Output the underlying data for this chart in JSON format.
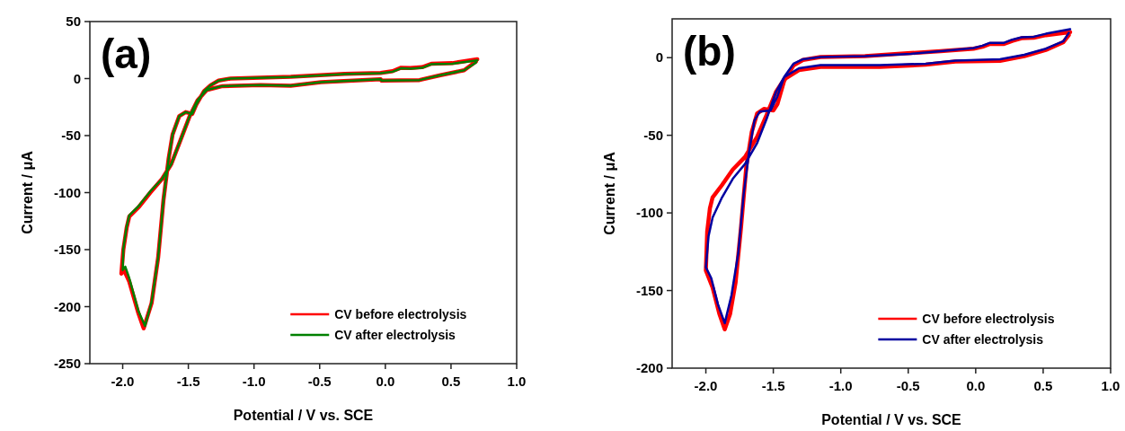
{
  "chart_data": [
    {
      "type": "line",
      "title": "(a)",
      "xlabel": "Potential / V vs. SCE",
      "ylabel": "Current / μA",
      "xlim": [
        -2.25,
        1.0
      ],
      "ylim": [
        -250,
        50
      ],
      "xticks": [
        {
          "value": -2,
          "label": "-2.0"
        },
        {
          "value": -1.5,
          "label": "-1.5"
        },
        {
          "value": -1,
          "label": "-1.0"
        },
        {
          "value": -0.5,
          "label": "-0.5"
        },
        {
          "value": 0,
          "label": "0.0"
        },
        {
          "value": 0.5,
          "label": "0.5"
        },
        {
          "value": 1,
          "label": "1.0"
        }
      ],
      "yticks": [
        -250,
        -200,
        -150,
        -100,
        -50,
        0,
        50
      ],
      "grid": false,
      "legend": "bottom right",
      "marker": "none",
      "line_style": "solid",
      "series": [
        {
          "name": "CV before electrolysis",
          "color": "#ff0000",
          "x": [
            0.7,
            0.51,
            0.35,
            0.28,
            0.19,
            0.12,
            0.055,
            -0.036,
            -0.31,
            -0.72,
            -1.18,
            -1.27,
            -1.33,
            -1.38,
            -1.44,
            -1.47,
            -1.52,
            -1.57,
            -1.62,
            -1.65,
            -1.69,
            -1.73,
            -1.78,
            -1.84,
            -1.88,
            -1.95,
            -1.99,
            -2.01,
            -1.995,
            -1.97,
            -1.95,
            -1.88,
            -1.79,
            -1.7,
            -1.63,
            -1.56,
            -1.49,
            -1.43,
            -1.36,
            -1.24,
            -0.95,
            -0.72,
            -0.49,
            -0.036,
            -0.03,
            0.26,
            0.42,
            0.6,
            0.69
          ],
          "values": [
            17,
            13.5,
            13,
            10,
            9.2,
            9.5,
            6.5,
            5,
            4.2,
            1.5,
            0,
            -1.8,
            -5.8,
            -11,
            -23,
            -31,
            -29.4,
            -33,
            -49,
            -70,
            -107,
            -157,
            -197,
            -219,
            -206,
            -178,
            -168,
            -171,
            -150,
            -131,
            -121,
            -113,
            -100,
            -88,
            -75,
            -54,
            -33,
            -19,
            -10,
            -6.6,
            -5.8,
            -6.3,
            -3.1,
            -0.5,
            -1.8,
            -1.3,
            2.9,
            7.3,
            15
          ]
        },
        {
          "name": "CV after electrolysis",
          "color": "#008000",
          "x": [
            0.7,
            0.51,
            0.35,
            0.28,
            0.19,
            0.12,
            0.055,
            -0.036,
            -0.31,
            -0.72,
            -1.18,
            -1.27,
            -1.33,
            -1.38,
            -1.44,
            -1.47,
            -1.52,
            -1.57,
            -1.62,
            -1.65,
            -1.69,
            -1.73,
            -1.78,
            -1.83,
            -1.88,
            -1.95,
            -1.98,
            -2.0,
            -1.995,
            -1.97,
            -1.95,
            -1.88,
            -1.79,
            -1.7,
            -1.63,
            -1.56,
            -1.49,
            -1.43,
            -1.36,
            -1.24,
            -0.95,
            -0.72,
            -0.49,
            -0.036,
            -0.03,
            0.26,
            0.42,
            0.6,
            0.69
          ],
          "values": [
            16,
            13,
            12.6,
            9.4,
            8.7,
            9,
            6,
            4.7,
            3.9,
            1.3,
            0,
            -1.8,
            -5.8,
            -11,
            -23,
            -31,
            -29.4,
            -33,
            -49,
            -70,
            -107,
            -157,
            -196,
            -217,
            -204,
            -175,
            -165,
            -168,
            -149,
            -130,
            -120,
            -112,
            -99,
            -88,
            -75,
            -54,
            -33,
            -19,
            -10,
            -6.6,
            -5.8,
            -6.3,
            -3.1,
            -0.5,
            -1.8,
            -1.3,
            2.9,
            7.3,
            14
          ]
        }
      ]
    },
    {
      "type": "line",
      "title": "(b)",
      "xlabel": "Potential / V vs. SCE",
      "ylabel": "Current / μA",
      "xlim": [
        -2.25,
        1.0
      ],
      "ylim": [
        -200,
        25
      ],
      "xticks": [
        {
          "value": -2,
          "label": "-2.0"
        },
        {
          "value": -1.5,
          "label": "-1.5"
        },
        {
          "value": -1,
          "label": "-1.0"
        },
        {
          "value": -0.5,
          "label": "-0.5"
        },
        {
          "value": 0,
          "label": "0.0"
        },
        {
          "value": 0.5,
          "label": "0.5"
        },
        {
          "value": 1,
          "label": "1.0"
        }
      ],
      "yticks": [
        -200,
        -150,
        -100,
        -50,
        0
      ],
      "grid": false,
      "legend": "bottom right",
      "marker": "none",
      "line_style": "solid",
      "series": [
        {
          "name": "CV before electrolysis",
          "color": "#ff0000",
          "x": [
            0.7,
            0.52,
            0.43,
            0.34,
            0.27,
            0.21,
            0.106,
            0.05,
            -0.016,
            -0.26,
            -0.48,
            -0.82,
            -1.15,
            -1.28,
            -1.35,
            -1.42,
            -1.47,
            -1.5,
            -1.57,
            -1.62,
            -1.66,
            -1.7,
            -1.74,
            -1.78,
            -1.82,
            -1.86,
            -1.9,
            -1.95,
            -2.0,
            -1.99,
            -1.97,
            -1.95,
            -1.88,
            -1.8,
            -1.71,
            -1.62,
            -1.55,
            -1.48,
            -1.42,
            -1.31,
            -1.15,
            -0.71,
            -0.37,
            -0.15,
            0.18,
            0.36,
            0.52,
            0.65,
            0.69
          ],
          "values": [
            16.5,
            14.5,
            12.8,
            12.5,
            10.8,
            8.8,
            8.8,
            7,
            5.8,
            4.2,
            3,
            1,
            0.4,
            -1.5,
            -5,
            -15,
            -30,
            -34,
            -33,
            -36,
            -48,
            -70,
            -110,
            -145,
            -165,
            -175,
            -165,
            -148,
            -137,
            -112,
            -97,
            -90,
            -82,
            -72,
            -64,
            -51,
            -37,
            -22,
            -14,
            -8,
            -6,
            -6,
            -4.5,
            -2.5,
            -2,
            1,
            5,
            10,
            14.5
          ]
        },
        {
          "name": "CV after electrolysis",
          "color": "#0000a0",
          "x": [
            0.7,
            0.52,
            0.43,
            0.34,
            0.27,
            0.21,
            0.106,
            0.05,
            -0.016,
            -0.26,
            -0.48,
            -0.82,
            -1.15,
            -1.28,
            -1.35,
            -1.42,
            -1.47,
            -1.52,
            -1.6,
            -1.64,
            -1.68,
            -1.72,
            -1.76,
            -1.81,
            -1.86,
            -1.91,
            -1.96,
            -2.0,
            -1.98,
            -1.95,
            -1.88,
            -1.8,
            -1.71,
            -1.62,
            -1.55,
            -1.48,
            -1.42,
            -1.31,
            -1.15,
            -0.71,
            -0.37,
            -0.15,
            0.18,
            0.36,
            0.52,
            0.65,
            0.69
          ],
          "values": [
            18.3,
            15.4,
            13.5,
            13.1,
            11.6,
            9.6,
            9.6,
            7.7,
            6.2,
            4.2,
            2.5,
            1,
            0.4,
            -1,
            -3.9,
            -12.5,
            -25,
            -34,
            -34.7,
            -40.5,
            -61,
            -88,
            -126,
            -153,
            -171,
            -159,
            -142,
            -135,
            -115,
            -103,
            -90,
            -78,
            -68.5,
            -55,
            -39.5,
            -22,
            -12.5,
            -6.8,
            -4.8,
            -4.8,
            -3.9,
            -1.9,
            -1,
            1.9,
            5.8,
            10.6,
            16
          ]
        }
      ]
    }
  ]
}
